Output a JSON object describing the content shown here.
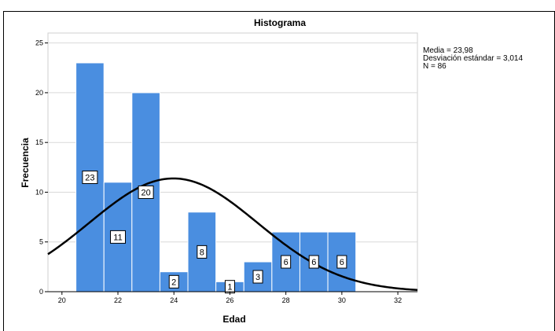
{
  "chart_data": {
    "type": "bar",
    "title": "Histograma",
    "xlabel": "Edad",
    "ylabel": "Frecuencia",
    "xlim": [
      19.5,
      32.7
    ],
    "ylim": [
      0,
      26
    ],
    "xticks": [
      20,
      22,
      24,
      26,
      28,
      30,
      32
    ],
    "yticks": [
      0,
      5,
      10,
      15,
      20,
      25
    ],
    "bin_width": 1,
    "bins": [
      {
        "x": 21,
        "value": 23
      },
      {
        "x": 22,
        "value": 11
      },
      {
        "x": 23,
        "value": 20
      },
      {
        "x": 24,
        "value": 2
      },
      {
        "x": 25,
        "value": 8
      },
      {
        "x": 26,
        "value": 1
      },
      {
        "x": 27,
        "value": 3
      },
      {
        "x": 28,
        "value": 6
      },
      {
        "x": 29,
        "value": 6
      },
      {
        "x": 30,
        "value": 6
      }
    ],
    "normal_curve": {
      "mean": 23.98,
      "sd": 3.014,
      "n": 86
    },
    "bar_color": "#4a8ee0",
    "curve_color": "#000000",
    "grid": "y",
    "stats_text": [
      "Media = 23,98",
      "Desviación estándar = 3,014",
      "N = 86"
    ]
  }
}
